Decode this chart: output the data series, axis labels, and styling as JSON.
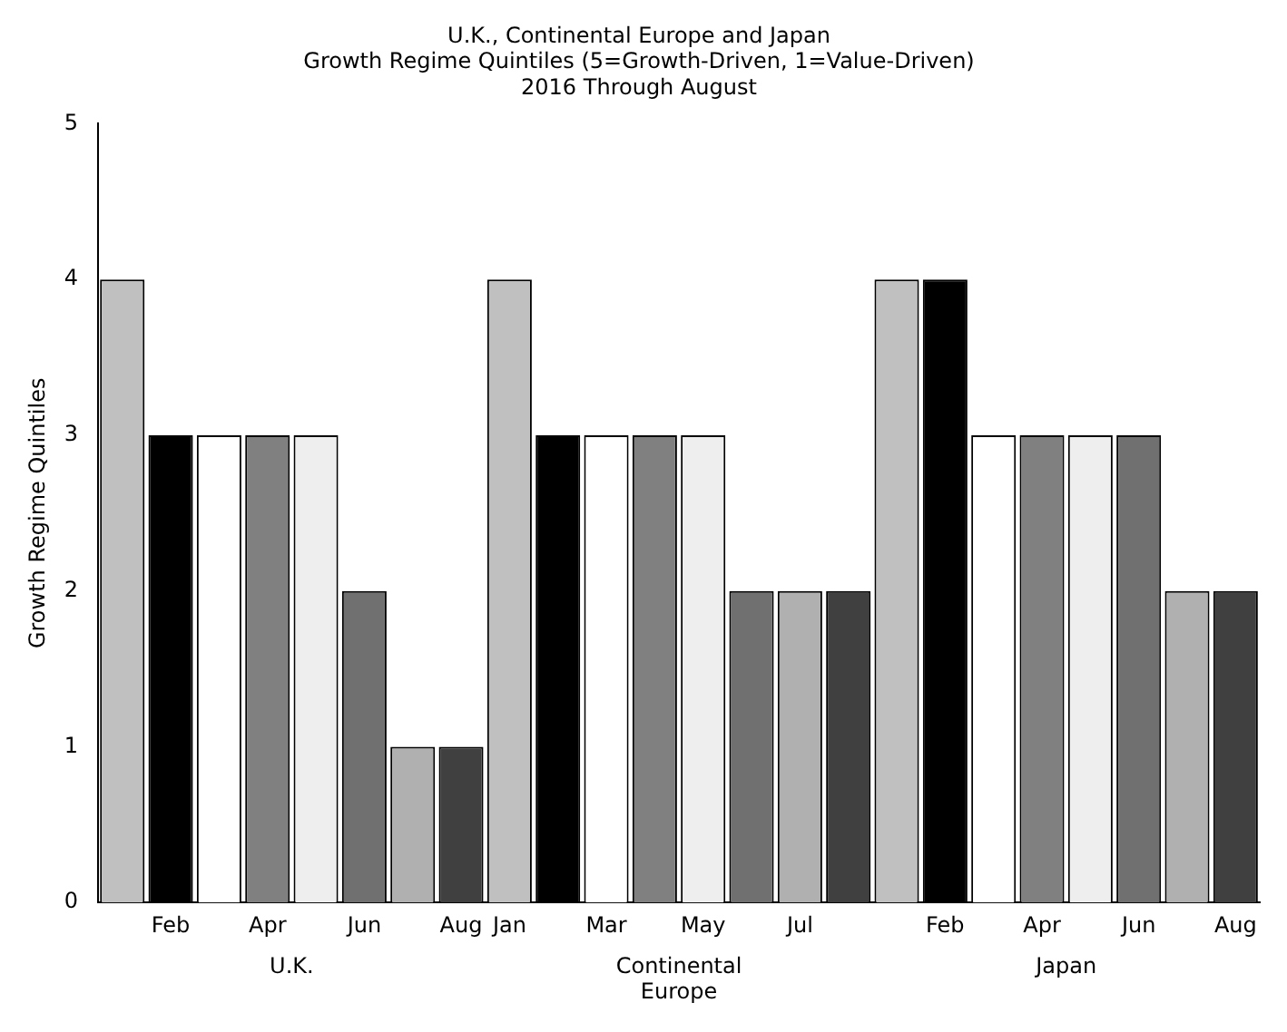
{
  "chart_data": {
    "type": "bar",
    "title": "U.K., Continental Europe and Japan",
    "subtitle": "Growth Regime Quintiles (5=Growth-Driven, 1=Value-Driven)\n2016 Through August",
    "ylabel": "Growth Regime Quintiles",
    "categories": [
      null,
      "Feb",
      null,
      "Apr",
      null,
      "Jun",
      null,
      "Aug",
      "Jan",
      null,
      "Mar",
      null,
      "May",
      null,
      "Jul",
      null,
      null,
      "Feb",
      null,
      "Apr",
      null,
      "Jun",
      null,
      "Aug"
    ],
    "values": [
      4,
      3,
      3,
      3,
      3,
      2,
      1,
      1,
      4,
      3,
      3,
      3,
      3,
      2,
      2,
      2,
      4,
      4,
      3,
      3,
      3,
      3,
      2,
      2
    ],
    "colors": [
      "#c0c0c0",
      "#000000",
      "#ffffff",
      "#808080",
      "#eeeeee",
      "#707070",
      "#b0b0b0",
      "#404040",
      "#c0c0c0",
      "#000000",
      "#ffffff",
      "#808080",
      "#eeeeee",
      "#707070",
      "#b0b0b0",
      "#404040",
      "#c0c0c0",
      "#000000",
      "#ffffff",
      "#808080",
      "#eeeeee",
      "#707070",
      "#b0b0b0",
      "#404040"
    ],
    "ylim": [
      0,
      5
    ],
    "yticks": [
      0,
      1,
      2,
      3,
      4,
      5
    ],
    "grid": false,
    "legend": false,
    "annotations": [
      "U.K.",
      "Continental Europe",
      "Japan"
    ]
  }
}
